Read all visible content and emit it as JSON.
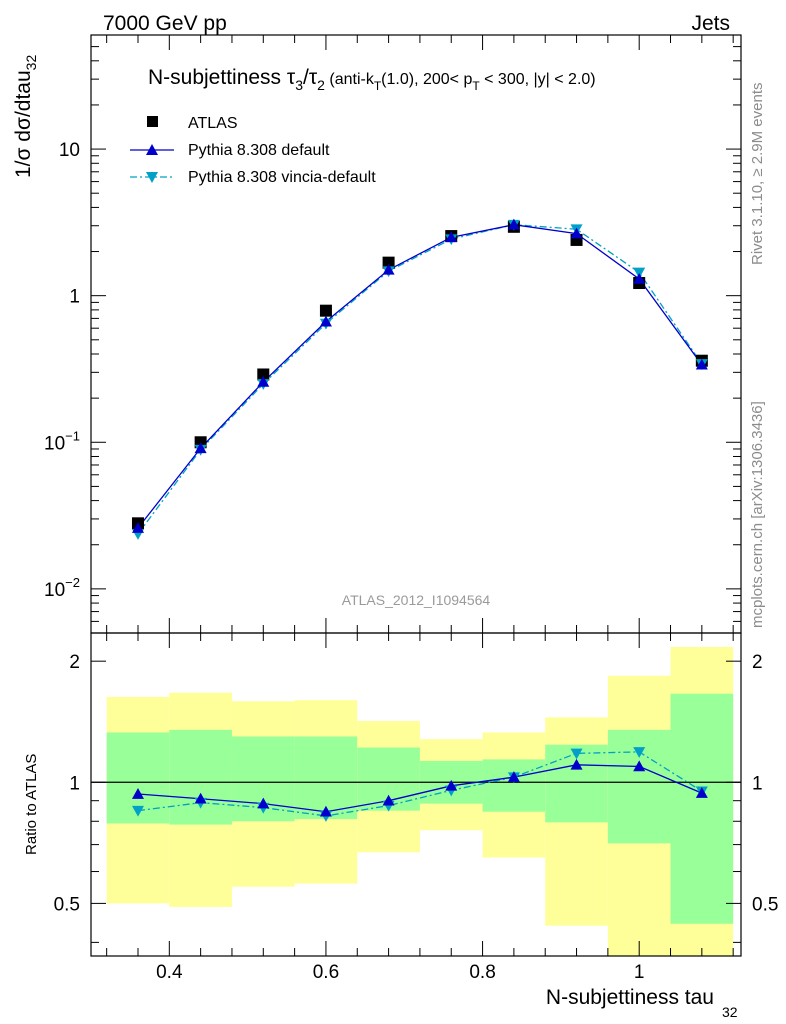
{
  "header": {
    "left": "7000 GeV pp",
    "right": "Jets"
  },
  "side_labels": {
    "rivet": "Rivet 3.1.10, ≥ 2.9M events",
    "mcplots": "mcplots.cern.ch [arXiv:1306.3436]"
  },
  "watermark": "ATLAS_2012_I1094564",
  "main_panel": {
    "title_main": "N-subjettiness τ",
    "title_sub3": "3",
    "title_slash": "/τ",
    "title_sub2": "2",
    "title_cut1": " (anti-k",
    "title_subT1": "T",
    "title_cut2": "(1.0), 200< p",
    "title_subT2": "T",
    "title_cut3": " < 300, |y| < 2.0)",
    "ylabel_main": "1/σ dσ/dtau",
    "ylabel_sub": "32",
    "yticks": [
      {
        "value": 0.01,
        "base": "10",
        "exp": "−2"
      },
      {
        "value": 0.1,
        "base": "10",
        "exp": "−1"
      },
      {
        "value": 1,
        "label": "1"
      },
      {
        "value": 10,
        "label": "10"
      }
    ]
  },
  "ratio_panel": {
    "ylabel": "Ratio to ATLAS",
    "yticks": [
      "0.5",
      "1",
      "2"
    ]
  },
  "x_axis": {
    "label_main": "N-subjettiness tau",
    "label_sub": "32",
    "ticks": [
      "0.4",
      "0.6",
      "0.8",
      "1"
    ]
  },
  "colors": {
    "atlas": "#000000",
    "default": "#0000cc",
    "vincia": "#00a0c8",
    "band_inner": "#99ff99",
    "band_outer": "#ffff99"
  },
  "legend": [
    {
      "label": "ATLAS"
    },
    {
      "label": "Pythia 8.308 default"
    },
    {
      "label": "Pythia 8.308 vincia-default"
    }
  ],
  "chart_data": {
    "type": "scatter",
    "x_scale": "linear",
    "y_scale_main": "log",
    "y_scale_ratio": "log",
    "xlim": [
      0.3,
      1.13
    ],
    "ylim_main": [
      0.005,
      60
    ],
    "ylim_ratio": [
      0.37,
      2.35
    ],
    "bin_edges": [
      0.32,
      0.4,
      0.48,
      0.56,
      0.64,
      0.72,
      0.8,
      0.88,
      0.96,
      1.04,
      1.12
    ],
    "x": [
      0.36,
      0.44,
      0.52,
      0.6,
      0.68,
      0.76,
      0.84,
      0.92,
      1.0,
      1.08
    ],
    "series": [
      {
        "name": "ATLAS",
        "values": [
          0.028,
          0.1,
          0.29,
          0.79,
          1.68,
          2.55,
          2.95,
          2.4,
          1.22,
          0.36
        ]
      },
      {
        "name": "Pythia 8.308 default",
        "values": [
          0.026,
          0.091,
          0.258,
          0.665,
          1.5,
          2.5,
          3.05,
          2.65,
          1.3,
          0.338
        ]
      },
      {
        "name": "Pythia 8.308 vincia-default",
        "values": [
          0.0237,
          0.089,
          0.25,
          0.645,
          1.47,
          2.43,
          3.05,
          2.84,
          1.44,
          0.342
        ]
      }
    ],
    "ratio_series": [
      {
        "name": "Pythia 8.308 default",
        "values": [
          0.935,
          0.91,
          0.885,
          0.845,
          0.9,
          0.98,
          1.03,
          1.105,
          1.095,
          0.94
        ]
      },
      {
        "name": "Pythia 8.308 vincia-default",
        "values": [
          0.85,
          0.89,
          0.865,
          0.825,
          0.875,
          0.955,
          1.03,
          1.18,
          1.19,
          0.95
        ]
      }
    ],
    "band_inner": {
      "lo": [
        0.79,
        0.785,
        0.8,
        0.81,
        0.85,
        0.885,
        0.845,
        0.795,
        0.705,
        0.445
      ],
      "hi": [
        1.33,
        1.35,
        1.3,
        1.3,
        1.22,
        1.13,
        1.14,
        1.24,
        1.35,
        1.66
      ]
    },
    "band_outer": {
      "lo": [
        0.5,
        0.49,
        0.55,
        0.56,
        0.67,
        0.76,
        0.65,
        0.44,
        0.37,
        0.37
      ],
      "hi": [
        1.63,
        1.67,
        1.59,
        1.6,
        1.42,
        1.28,
        1.33,
        1.45,
        1.84,
        2.17
      ]
    }
  }
}
